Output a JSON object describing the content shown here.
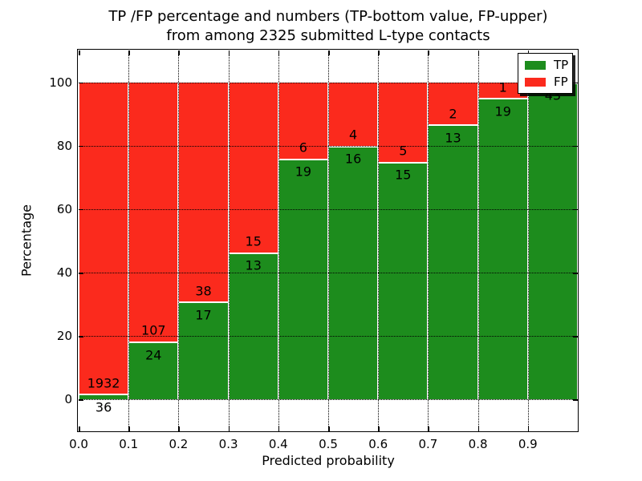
{
  "figure": {
    "title_line1": "TP /FP percentage and numbers (TP-bottom value, FP-upper)",
    "title_line2": "from among 2325 submitted L-type contacts",
    "xlabel": "Predicted probability",
    "ylabel": "Percentage",
    "total_submitted_contacts": 2325
  },
  "colors": {
    "tp_green": "#1d8c1d",
    "fp_red": "#fb2a1d",
    "axis_black": "#000000",
    "background": "#ffffff"
  },
  "chart_data": {
    "type": "bar",
    "stacked": true,
    "normalized": "each bar scaled to 100%",
    "title": "TP /FP percentage and numbers (TP-bottom value, FP-upper) from among 2325 submitted L-type contacts",
    "xlabel": "Predicted probability",
    "ylabel": "Percentage",
    "bin_edges": [
      0.0,
      0.1,
      0.2,
      0.3,
      0.4,
      0.5,
      0.6,
      0.7,
      0.8,
      0.9,
      1.0
    ],
    "categories": [
      "0.0-0.1",
      "0.1-0.2",
      "0.2-0.3",
      "0.3-0.4",
      "0.4-0.5",
      "0.5-0.6",
      "0.6-0.7",
      "0.7-0.8",
      "0.8-0.9",
      "0.9-1.0"
    ],
    "series": [
      {
        "name": "TP",
        "color": "#1d8c1d",
        "values": [
          36,
          24,
          17,
          13,
          19,
          16,
          15,
          13,
          19,
          43
        ]
      },
      {
        "name": "FP",
        "color": "#fb2a1d",
        "values": [
          1932,
          107,
          38,
          15,
          6,
          4,
          5,
          2,
          1,
          0
        ]
      }
    ],
    "tp_percent": [
      1.83,
      18.32,
      30.91,
      46.43,
      76.0,
      80.0,
      75.0,
      86.67,
      95.0,
      100.0
    ],
    "xticks": [
      "0.0",
      "0.1",
      "0.2",
      "0.3",
      "0.4",
      "0.5",
      "0.6",
      "0.7",
      "0.8",
      "0.9"
    ],
    "yticks": [
      0,
      20,
      40,
      60,
      80,
      100
    ],
    "xlim": [
      0.0,
      1.0
    ],
    "ylim": [
      -10,
      110
    ],
    "grid": true,
    "grid_style": "dotted",
    "legend": {
      "position": "upper right",
      "entries": [
        {
          "label": "TP",
          "color": "#1d8c1d"
        },
        {
          "label": "FP",
          "color": "#fb2a1d"
        }
      ]
    }
  }
}
